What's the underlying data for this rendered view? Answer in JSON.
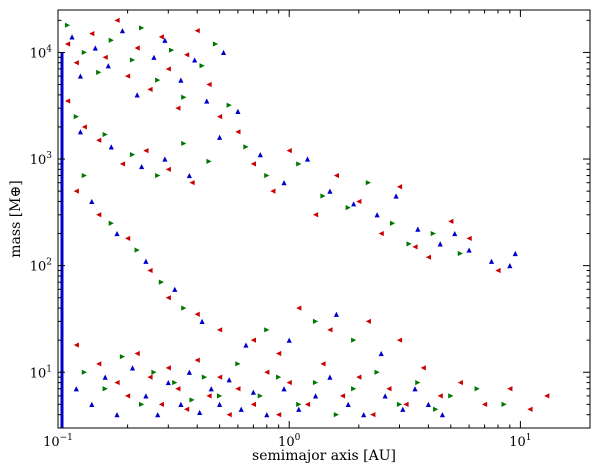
{
  "chart_data": {
    "type": "scatter",
    "title": "",
    "xlabel": "semimajor axis [AU]",
    "ylabel": "mass [M⊕]",
    "xscale": "log",
    "yscale": "log",
    "xlim": [
      0.1,
      20
    ],
    "ylim": [
      3,
      25000
    ],
    "xticks": [
      {
        "value": 0.1,
        "base": "10",
        "exp": "−1"
      },
      {
        "value": 1,
        "base": "10",
        "exp": "0"
      },
      {
        "value": 10,
        "base": "10",
        "exp": "1"
      }
    ],
    "yticks": [
      {
        "value": 10,
        "base": "10",
        "exp": "1"
      },
      {
        "value": 100,
        "base": "10",
        "exp": "2"
      },
      {
        "value": 1000,
        "base": "10",
        "exp": "3"
      },
      {
        "value": 10000,
        "base": "10",
        "exp": "4"
      }
    ],
    "grid": false,
    "legend": "none",
    "inner_edge": {
      "x": 0.1,
      "color": "#0000cc"
    },
    "series": [
      {
        "color": "#cc0000",
        "marker": "triangle-left",
        "points": [
          [
            0.11,
            12000
          ],
          [
            0.12,
            8000
          ],
          [
            0.14,
            15000
          ],
          [
            0.16,
            9000
          ],
          [
            0.18,
            20000
          ],
          [
            0.2,
            6000
          ],
          [
            0.22,
            11000
          ],
          [
            0.25,
            4500
          ],
          [
            0.28,
            14000
          ],
          [
            0.3,
            7000
          ],
          [
            0.33,
            3000
          ],
          [
            0.36,
            9500
          ],
          [
            0.4,
            16000
          ],
          [
            0.45,
            5000
          ],
          [
            0.5,
            2500
          ],
          [
            0.11,
            3500
          ],
          [
            0.13,
            2000
          ],
          [
            0.15,
            1500
          ],
          [
            0.19,
            900
          ],
          [
            0.24,
            1200
          ],
          [
            0.3,
            800
          ],
          [
            0.38,
            600
          ],
          [
            0.6,
            1800
          ],
          [
            0.7,
            900
          ],
          [
            0.85,
            500
          ],
          [
            1.0,
            1200
          ],
          [
            1.3,
            300
          ],
          [
            1.6,
            700
          ],
          [
            2.0,
            400
          ],
          [
            2.5,
            200
          ],
          [
            3.0,
            550
          ],
          [
            3.5,
            150
          ],
          [
            4.0,
            120
          ],
          [
            5.0,
            260
          ],
          [
            6.0,
            180
          ],
          [
            8.0,
            90
          ],
          [
            0.12,
            500
          ],
          [
            0.15,
            300
          ],
          [
            0.2,
            180
          ],
          [
            0.25,
            90
          ],
          [
            0.3,
            50
          ],
          [
            0.4,
            35
          ],
          [
            0.5,
            25
          ],
          [
            0.12,
            18
          ],
          [
            0.15,
            12
          ],
          [
            0.18,
            8
          ],
          [
            0.2,
            6
          ],
          [
            0.22,
            15
          ],
          [
            0.25,
            9
          ],
          [
            0.28,
            5
          ],
          [
            0.3,
            11
          ],
          [
            0.33,
            7
          ],
          [
            0.36,
            4.5
          ],
          [
            0.4,
            13
          ],
          [
            0.45,
            6
          ],
          [
            0.5,
            9
          ],
          [
            0.55,
            4
          ],
          [
            0.6,
            7
          ],
          [
            0.7,
            5
          ],
          [
            0.8,
            10
          ],
          [
            0.9,
            4
          ],
          [
            1.0,
            8
          ],
          [
            1.2,
            5
          ],
          [
            1.4,
            12
          ],
          [
            1.7,
            6
          ],
          [
            2.0,
            9
          ],
          [
            2.3,
            4
          ],
          [
            2.7,
            7
          ],
          [
            3.2,
            5
          ],
          [
            3.8,
            11
          ],
          [
            4.5,
            6
          ],
          [
            5.5,
            8
          ],
          [
            7.0,
            5
          ],
          [
            9.0,
            7
          ],
          [
            11.0,
            4.5
          ],
          [
            13.0,
            6
          ],
          [
            1.1,
            40
          ],
          [
            1.5,
            25
          ],
          [
            2.2,
            30
          ],
          [
            3.0,
            20
          ],
          [
            0.7,
            20
          ],
          [
            0.9,
            15
          ]
        ]
      },
      {
        "color": "#007700",
        "marker": "triangle-right",
        "points": [
          [
            0.11,
            18000
          ],
          [
            0.13,
            10000
          ],
          [
            0.15,
            6500
          ],
          [
            0.17,
            13000
          ],
          [
            0.21,
            8500
          ],
          [
            0.23,
            17000
          ],
          [
            0.27,
            5500
          ],
          [
            0.31,
            10500
          ],
          [
            0.35,
            3800
          ],
          [
            0.42,
            7500
          ],
          [
            0.48,
            12000
          ],
          [
            0.55,
            3200
          ],
          [
            0.12,
            2500
          ],
          [
            0.16,
            1700
          ],
          [
            0.21,
            1100
          ],
          [
            0.27,
            700
          ],
          [
            0.35,
            1400
          ],
          [
            0.45,
            950
          ],
          [
            0.65,
            1300
          ],
          [
            0.8,
            700
          ],
          [
            1.1,
            900
          ],
          [
            1.4,
            450
          ],
          [
            1.8,
            350
          ],
          [
            2.2,
            600
          ],
          [
            2.8,
            250
          ],
          [
            3.3,
            160
          ],
          [
            4.2,
            200
          ],
          [
            5.5,
            130
          ],
          [
            0.13,
            700
          ],
          [
            0.17,
            250
          ],
          [
            0.22,
            140
          ],
          [
            0.28,
            70
          ],
          [
            0.35,
            40
          ],
          [
            0.13,
            10
          ],
          [
            0.16,
            7
          ],
          [
            0.19,
            14
          ],
          [
            0.23,
            5
          ],
          [
            0.26,
            10
          ],
          [
            0.32,
            8
          ],
          [
            0.38,
            5.5
          ],
          [
            0.43,
            9
          ],
          [
            0.5,
            6
          ],
          [
            0.6,
            12
          ],
          [
            0.75,
            6
          ],
          [
            0.9,
            9
          ],
          [
            1.1,
            5
          ],
          [
            1.3,
            8
          ],
          [
            1.6,
            4
          ],
          [
            1.9,
            7
          ],
          [
            2.4,
            10
          ],
          [
            3.0,
            5
          ],
          [
            3.6,
            8
          ],
          [
            4.3,
            4.5
          ],
          [
            5.0,
            6
          ],
          [
            6.5,
            7
          ],
          [
            8.5,
            5
          ],
          [
            1.3,
            30
          ],
          [
            1.9,
            20
          ],
          [
            0.8,
            25
          ]
        ]
      },
      {
        "color": "#0000cc",
        "marker": "triangle-up",
        "points": [
          [
            0.115,
            14000
          ],
          [
            0.125,
            6000
          ],
          [
            0.145,
            11000
          ],
          [
            0.165,
            7500
          ],
          [
            0.19,
            16000
          ],
          [
            0.22,
            4000
          ],
          [
            0.26,
            9000
          ],
          [
            0.29,
            13000
          ],
          [
            0.34,
            5500
          ],
          [
            0.39,
            8500
          ],
          [
            0.44,
            3500
          ],
          [
            0.52,
            10000
          ],
          [
            0.6,
            2800
          ],
          [
            0.125,
            1800
          ],
          [
            0.17,
            1300
          ],
          [
            0.23,
            850
          ],
          [
            0.29,
            1000
          ],
          [
            0.37,
            700
          ],
          [
            0.5,
            1600
          ],
          [
            0.75,
            1100
          ],
          [
            0.95,
            600
          ],
          [
            1.2,
            1000
          ],
          [
            1.5,
            500
          ],
          [
            1.9,
            380
          ],
          [
            2.4,
            300
          ],
          [
            2.9,
            450
          ],
          [
            3.6,
            220
          ],
          [
            4.5,
            160
          ],
          [
            5.2,
            200
          ],
          [
            6.0,
            140
          ],
          [
            7.5,
            110
          ],
          [
            9.0,
            100
          ],
          [
            9.5,
            130
          ],
          [
            0.14,
            400
          ],
          [
            0.18,
            200
          ],
          [
            0.24,
            110
          ],
          [
            0.32,
            60
          ],
          [
            0.42,
            30
          ],
          [
            0.12,
            7
          ],
          [
            0.14,
            5
          ],
          [
            0.16,
            9
          ],
          [
            0.18,
            4
          ],
          [
            0.21,
            11
          ],
          [
            0.24,
            6
          ],
          [
            0.27,
            4
          ],
          [
            0.3,
            8
          ],
          [
            0.34,
            5
          ],
          [
            0.37,
            10
          ],
          [
            0.41,
            4.2
          ],
          [
            0.46,
            7
          ],
          [
            0.5,
            5
          ],
          [
            0.55,
            8.5
          ],
          [
            0.62,
            4.5
          ],
          [
            0.7,
            6.5
          ],
          [
            0.8,
            4
          ],
          [
            0.95,
            7
          ],
          [
            1.1,
            4.5
          ],
          [
            1.3,
            6
          ],
          [
            1.5,
            9
          ],
          [
            1.8,
            5
          ],
          [
            2.1,
            4
          ],
          [
            2.6,
            6
          ],
          [
            3.1,
            4.5
          ],
          [
            3.5,
            7
          ],
          [
            4.0,
            5
          ],
          [
            4.6,
            4
          ],
          [
            1.0,
            20
          ],
          [
            1.6,
            35
          ],
          [
            2.5,
            15
          ],
          [
            0.65,
            18
          ]
        ]
      }
    ]
  }
}
